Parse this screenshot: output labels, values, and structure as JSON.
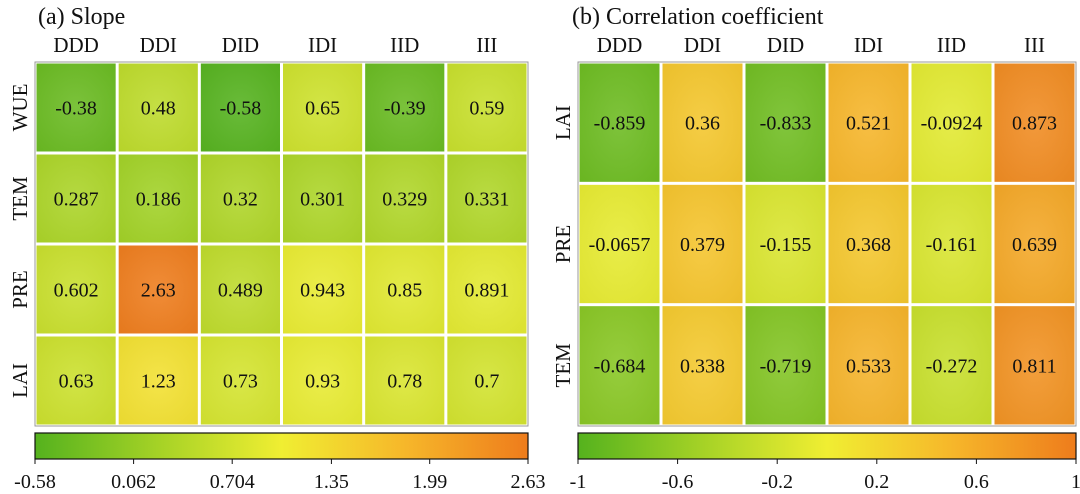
{
  "chart_data": [
    {
      "type": "heatmap",
      "title": "(a) Slope",
      "columns": [
        "DDD",
        "DDI",
        "DID",
        "IDI",
        "IID",
        "III"
      ],
      "rows": [
        "WUE",
        "TEM",
        "PRE",
        "LAI"
      ],
      "labels": [
        [
          "-0.38",
          "0.48",
          "-0.58",
          "0.65",
          "-0.39",
          "0.59"
        ],
        [
          "0.287",
          "0.186",
          "0.32",
          "0.301",
          "0.329",
          "0.331"
        ],
        [
          "0.602",
          "2.63",
          "0.489",
          "0.943",
          "0.85",
          "0.891"
        ],
        [
          "0.63",
          "1.23",
          "0.73",
          "0.93",
          "0.78",
          "0.7"
        ]
      ],
      "values": [
        [
          -0.38,
          0.48,
          -0.58,
          0.65,
          -0.39,
          0.59
        ],
        [
          0.287,
          0.186,
          0.32,
          0.301,
          0.329,
          0.331
        ],
        [
          0.602,
          2.63,
          0.489,
          0.943,
          0.85,
          0.891
        ],
        [
          0.63,
          1.23,
          0.73,
          0.93,
          0.78,
          0.7
        ]
      ],
      "colorbar": {
        "min": -0.58,
        "max": 2.63,
        "ticks": [
          -0.58,
          0.062,
          0.704,
          1.35,
          1.99,
          2.63
        ],
        "tick_labels": [
          "-0.58",
          "0.062",
          "0.704",
          "1.35",
          "1.99",
          "2.63"
        ]
      },
      "grid": true,
      "colormap": [
        "#55b21e",
        "#a5d226",
        "#f0ee32",
        "#f6b72a",
        "#ee7c1c"
      ]
    },
    {
      "type": "heatmap",
      "title": "(b) Correlation coefficient",
      "columns": [
        "DDD",
        "DDI",
        "DID",
        "IDI",
        "IID",
        "III"
      ],
      "rows": [
        "LAI",
        "PRE",
        "TEM"
      ],
      "labels": [
        [
          "-0.859",
          "0.36",
          "-0.833",
          "0.521",
          "-0.0924",
          "0.873"
        ],
        [
          "-0.0657",
          "0.379",
          "-0.155",
          "0.368",
          "-0.161",
          "0.639"
        ],
        [
          "-0.684",
          "0.338",
          "-0.719",
          "0.533",
          "-0.272",
          "0.811"
        ]
      ],
      "values": [
        [
          -0.859,
          0.36,
          -0.833,
          0.521,
          -0.0924,
          0.873
        ],
        [
          -0.0657,
          0.379,
          -0.155,
          0.368,
          -0.161,
          0.639
        ],
        [
          -0.684,
          0.338,
          -0.719,
          0.533,
          -0.272,
          0.811
        ]
      ],
      "colorbar": {
        "min": -1,
        "max": 1,
        "ticks": [
          -1,
          -0.6,
          -0.2,
          0.2,
          0.6,
          1
        ],
        "tick_labels": [
          "-1",
          "-0.6",
          "-0.2",
          "0.2",
          "0.6",
          "1"
        ]
      },
      "grid": true,
      "colormap": [
        "#55b21e",
        "#a5d226",
        "#f0ee32",
        "#f6b72a",
        "#ee7c1c"
      ]
    }
  ]
}
